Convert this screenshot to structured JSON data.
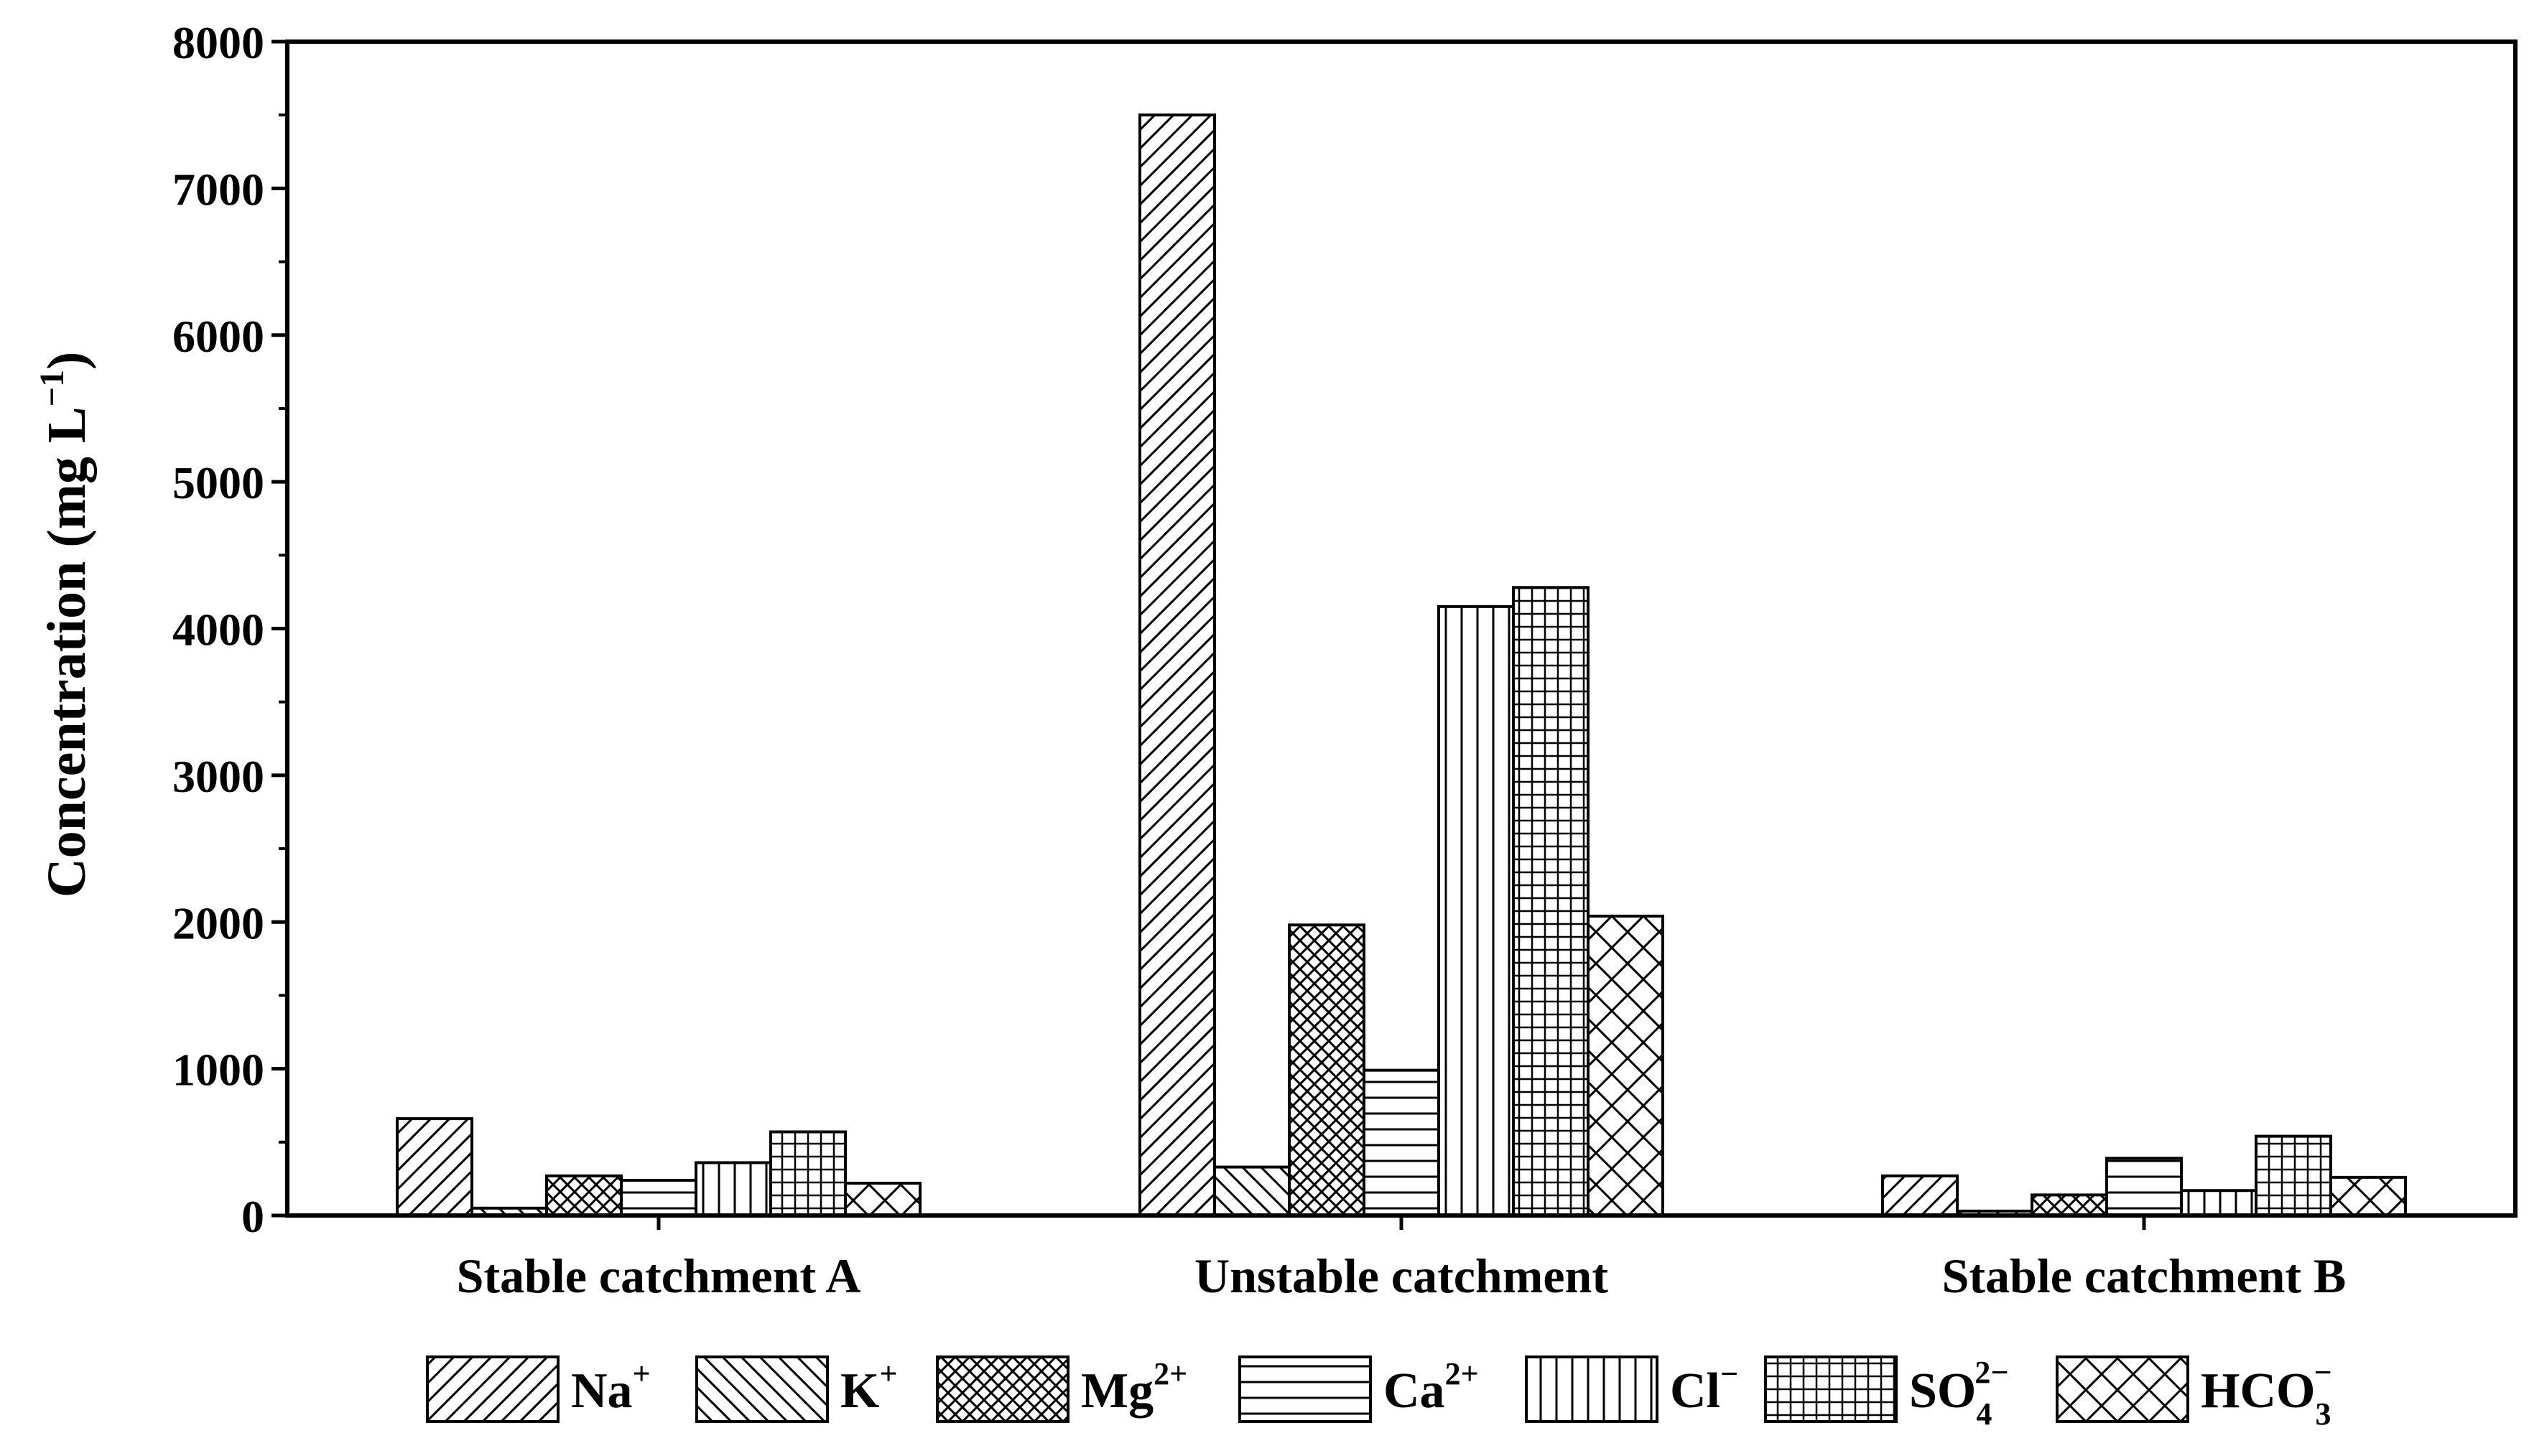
{
  "chart_data": {
    "type": "bar",
    "title": "",
    "xlabel": "",
    "ylabel": "Concentration (mg L",
    "ylabel_exponent": "−1",
    "ylabel_close": ")",
    "ylim": [
      0,
      8000
    ],
    "yticks": [
      0,
      1000,
      2000,
      3000,
      4000,
      5000,
      6000,
      7000,
      8000
    ],
    "grid": false,
    "legend_position": "bottom",
    "categories": [
      "Stable catchment A",
      "Unstable catchment",
      "Stable catchment B"
    ],
    "series": [
      {
        "name": "Na",
        "sup": "+",
        "sub": "",
        "pattern": "hatch-diag-right",
        "values": [
          660,
          7500,
          270
        ]
      },
      {
        "name": "K",
        "sup": "+",
        "sub": "",
        "pattern": "hatch-diag-left",
        "values": [
          50,
          330,
          30
        ]
      },
      {
        "name": "Mg",
        "sup": "2+",
        "sub": "",
        "pattern": "hatch-cross-diag",
        "values": [
          270,
          1980,
          140
        ]
      },
      {
        "name": "Ca",
        "sup": "2+",
        "sub": "",
        "pattern": "hatch-horizontal",
        "values": [
          240,
          990,
          390
        ]
      },
      {
        "name": "Cl",
        "sup": "−",
        "sub": "",
        "pattern": "hatch-vertical",
        "values": [
          360,
          4150,
          170
        ]
      },
      {
        "name": "SO",
        "sup": "2−",
        "sub": "4",
        "pattern": "hatch-grid",
        "values": [
          570,
          4280,
          540
        ]
      },
      {
        "name": "HCO",
        "sup": "−",
        "sub": "3",
        "pattern": "hatch-cross-diag-wide",
        "values": [
          220,
          2040,
          260
        ]
      }
    ]
  }
}
